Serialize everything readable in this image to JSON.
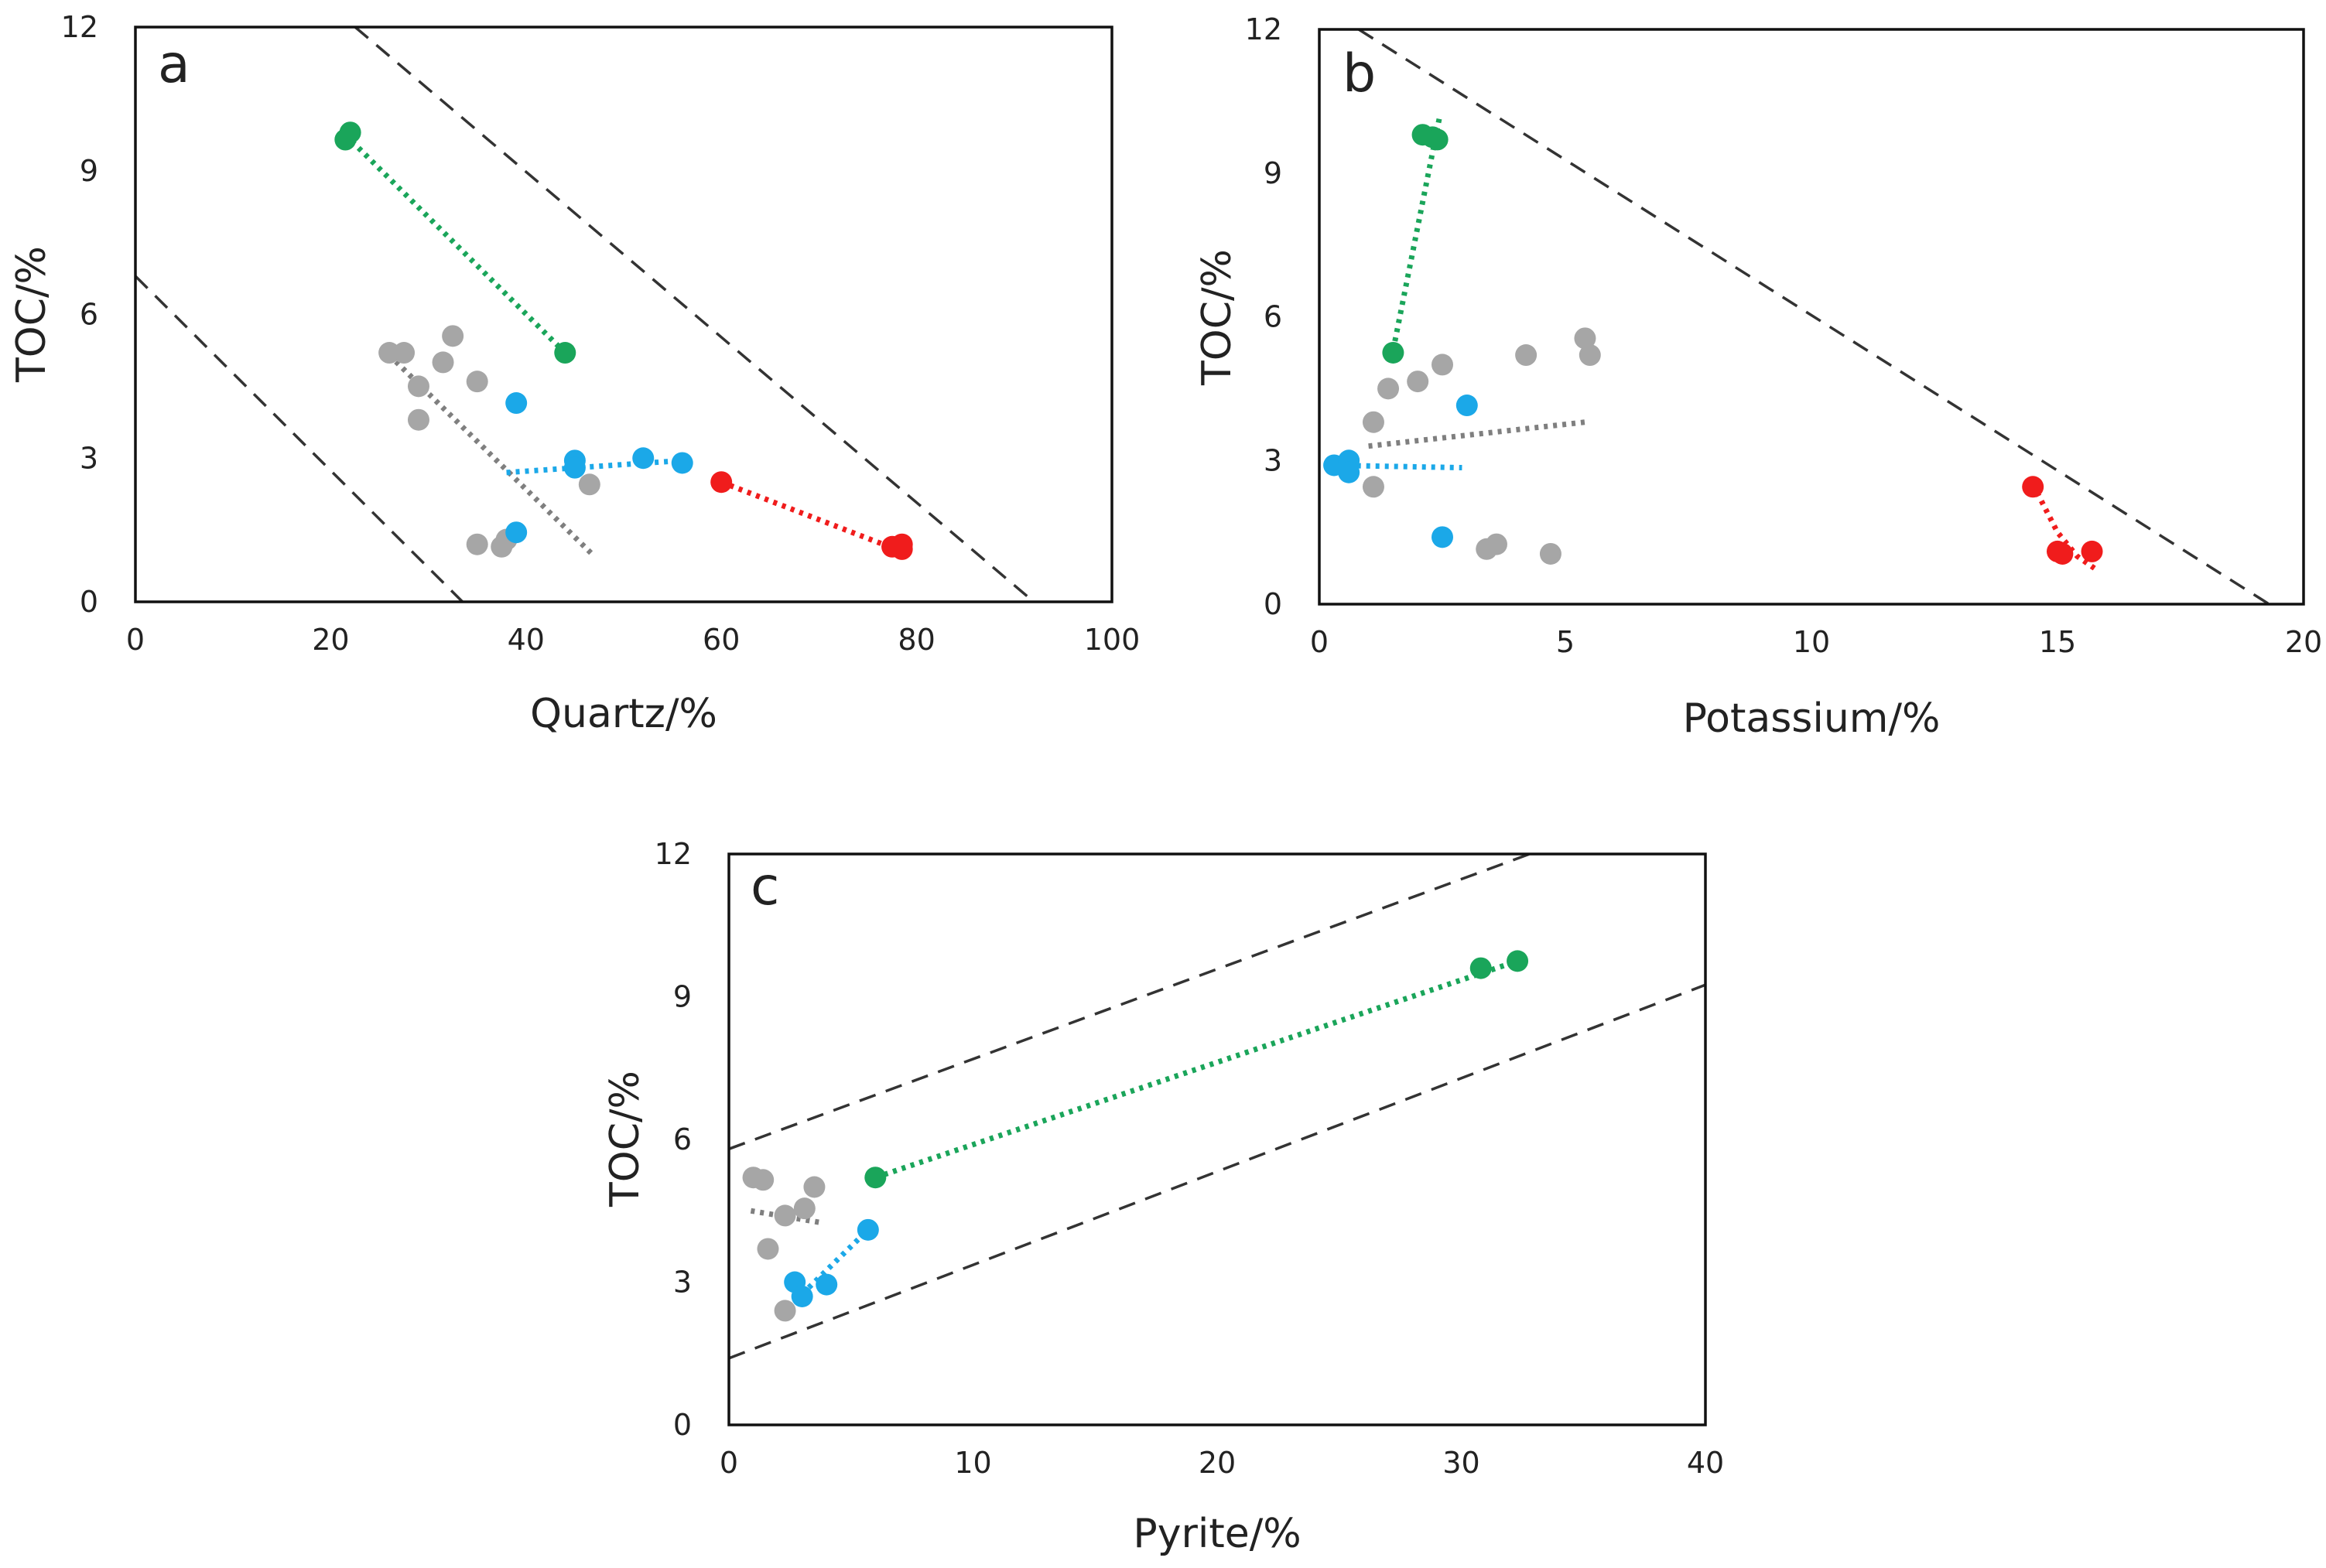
{
  "figure": {
    "colors": {
      "green": "#1aa55a",
      "blue": "#1ba8e8",
      "red": "#f01c1c",
      "gray": "#a6a6a6",
      "trend_gray": "#7f7f7f",
      "bounds": "#333333",
      "axis": "#111111"
    }
  },
  "chart_data": [
    {
      "id": "a",
      "type": "scatter",
      "panel_label": "a",
      "xlabel": "Quartz/%",
      "ylabel": "TOC/%",
      "xlim": [
        0,
        100
      ],
      "ylim": [
        0,
        12
      ],
      "xticks": [
        "0",
        "20",
        "40",
        "60",
        "80",
        "100"
      ],
      "yticks": [
        "0",
        "3",
        "6",
        "9",
        "12"
      ],
      "bounds": [
        {
          "x": [
            22.5,
            92
          ],
          "y": [
            12,
            0
          ]
        },
        {
          "x": [
            0,
            33.5
          ],
          "y": [
            6.8,
            0
          ]
        }
      ],
      "series": [
        {
          "name": "gray",
          "color": "gray",
          "points": [
            [
              26,
              5.2
            ],
            [
              27.5,
              5.2
            ],
            [
              29,
              4.5
            ],
            [
              29,
              3.8
            ],
            [
              31.5,
              5.0
            ],
            [
              32.5,
              5.55
            ],
            [
              35,
              4.6
            ],
            [
              35,
              1.2
            ],
            [
              37.5,
              1.15
            ],
            [
              38,
              1.3
            ],
            [
              46.5,
              2.45
            ]
          ],
          "trend": [
            [
              26,
              5.15
            ],
            [
              47,
              0.95
            ]
          ]
        },
        {
          "name": "green",
          "color": "green",
          "points": [
            [
              21.5,
              9.65
            ],
            [
              22,
              9.8
            ],
            [
              44,
              5.2
            ]
          ],
          "trend": [
            [
              21.5,
              9.75
            ],
            [
              44,
              5.2
            ]
          ]
        },
        {
          "name": "blue",
          "color": "blue",
          "points": [
            [
              39,
              4.15
            ],
            [
              39,
              1.45
            ],
            [
              45,
              2.95
            ],
            [
              45,
              2.8
            ],
            [
              52,
              3.0
            ],
            [
              56,
              2.9
            ]
          ],
          "trend": [
            [
              38,
              2.7
            ],
            [
              56,
              2.95
            ]
          ]
        },
        {
          "name": "red",
          "color": "red",
          "points": [
            [
              60,
              2.5
            ],
            [
              77.5,
              1.15
            ],
            [
              78.5,
              1.1
            ],
            [
              78.5,
              1.2
            ]
          ],
          "trend": [
            [
              60,
              2.5
            ],
            [
              78.5,
              1.05
            ]
          ]
        }
      ]
    },
    {
      "id": "b",
      "type": "scatter",
      "panel_label": "b",
      "xlabel": "Potassium/%",
      "ylabel": "TOC/%",
      "xlim": [
        0,
        20
      ],
      "ylim": [
        0,
        12
      ],
      "xticks": [
        "0",
        "5",
        "10",
        "15",
        "20"
      ],
      "yticks": [
        "0",
        "3",
        "6",
        "9",
        "12"
      ],
      "bounds": [
        {
          "x": [
            0.8,
            19.3
          ],
          "y": [
            12,
            0
          ]
        }
      ],
      "series": [
        {
          "name": "gray",
          "color": "gray",
          "points": [
            [
              1.1,
              2.45
            ],
            [
              1.1,
              3.8
            ],
            [
              1.4,
              4.5
            ],
            [
              2.0,
              4.65
            ],
            [
              2.5,
              5.0
            ],
            [
              3.4,
              1.15
            ],
            [
              3.6,
              1.25
            ],
            [
              4.2,
              5.2
            ],
            [
              4.7,
              1.05
            ],
            [
              5.4,
              5.55
            ],
            [
              5.5,
              5.2
            ]
          ],
          "trend": [
            [
              1.0,
              3.3
            ],
            [
              5.4,
              3.8
            ]
          ]
        },
        {
          "name": "green",
          "color": "green",
          "points": [
            [
              1.5,
              5.25
            ],
            [
              2.1,
              9.8
            ],
            [
              2.3,
              9.75
            ],
            [
              2.4,
              9.7
            ]
          ],
          "trend": [
            [
              1.5,
              5.3
            ],
            [
              2.45,
              10.2
            ]
          ]
        },
        {
          "name": "blue",
          "color": "blue",
          "points": [
            [
              0.3,
              2.9
            ],
            [
              0.6,
              3.0
            ],
            [
              0.6,
              2.75
            ],
            [
              3.0,
              4.15
            ],
            [
              2.5,
              1.4
            ]
          ],
          "trend": [
            [
              0.2,
              2.9
            ],
            [
              2.9,
              2.85
            ]
          ]
        },
        {
          "name": "red",
          "color": "red",
          "points": [
            [
              14.5,
              2.45
            ],
            [
              15.0,
              1.1
            ],
            [
              15.1,
              1.05
            ],
            [
              15.7,
              1.1
            ]
          ],
          "trend": [
            [
              14.5,
              2.5
            ],
            [
              15.0,
              1.5
            ],
            [
              15.4,
              1.0
            ],
            [
              15.75,
              0.75
            ]
          ]
        }
      ]
    },
    {
      "id": "c",
      "type": "scatter",
      "panel_label": "c",
      "xlabel": "Pyrite/%",
      "ylabel": "TOC/%",
      "xlim": [
        0,
        40
      ],
      "ylim": [
        0,
        12
      ],
      "xticks": [
        "0",
        "10",
        "20",
        "30",
        "40"
      ],
      "yticks": [
        "0",
        "3",
        "6",
        "9",
        "12"
      ],
      "bounds": [
        {
          "x": [
            0,
            32.8
          ],
          "y": [
            5.8,
            12
          ]
        },
        {
          "x": [
            0,
            40
          ],
          "y": [
            1.4,
            9.25
          ]
        }
      ],
      "series": [
        {
          "name": "gray",
          "color": "gray",
          "points": [
            [
              1.0,
              5.2
            ],
            [
              1.4,
              5.15
            ],
            [
              1.6,
              3.7
            ],
            [
              2.3,
              4.4
            ],
            [
              2.3,
              2.4
            ],
            [
              3.1,
              4.55
            ],
            [
              3.5,
              5.0
            ]
          ],
          "trend": [
            [
              0.9,
              4.5
            ],
            [
              3.8,
              4.25
            ]
          ]
        },
        {
          "name": "green",
          "color": "green",
          "points": [
            [
              6.0,
              5.2
            ],
            [
              30.8,
              9.6
            ],
            [
              32.3,
              9.75
            ]
          ],
          "trend": [
            [
              6.0,
              5.2
            ],
            [
              32.3,
              9.75
            ]
          ]
        },
        {
          "name": "blue",
          "color": "blue",
          "points": [
            [
              2.7,
              3.0
            ],
            [
              3.0,
              2.7
            ],
            [
              4.0,
              2.95
            ],
            [
              5.7,
              4.1
            ]
          ],
          "trend": [
            [
              3.0,
              2.75
            ],
            [
              5.7,
              4.1
            ]
          ]
        }
      ]
    }
  ]
}
